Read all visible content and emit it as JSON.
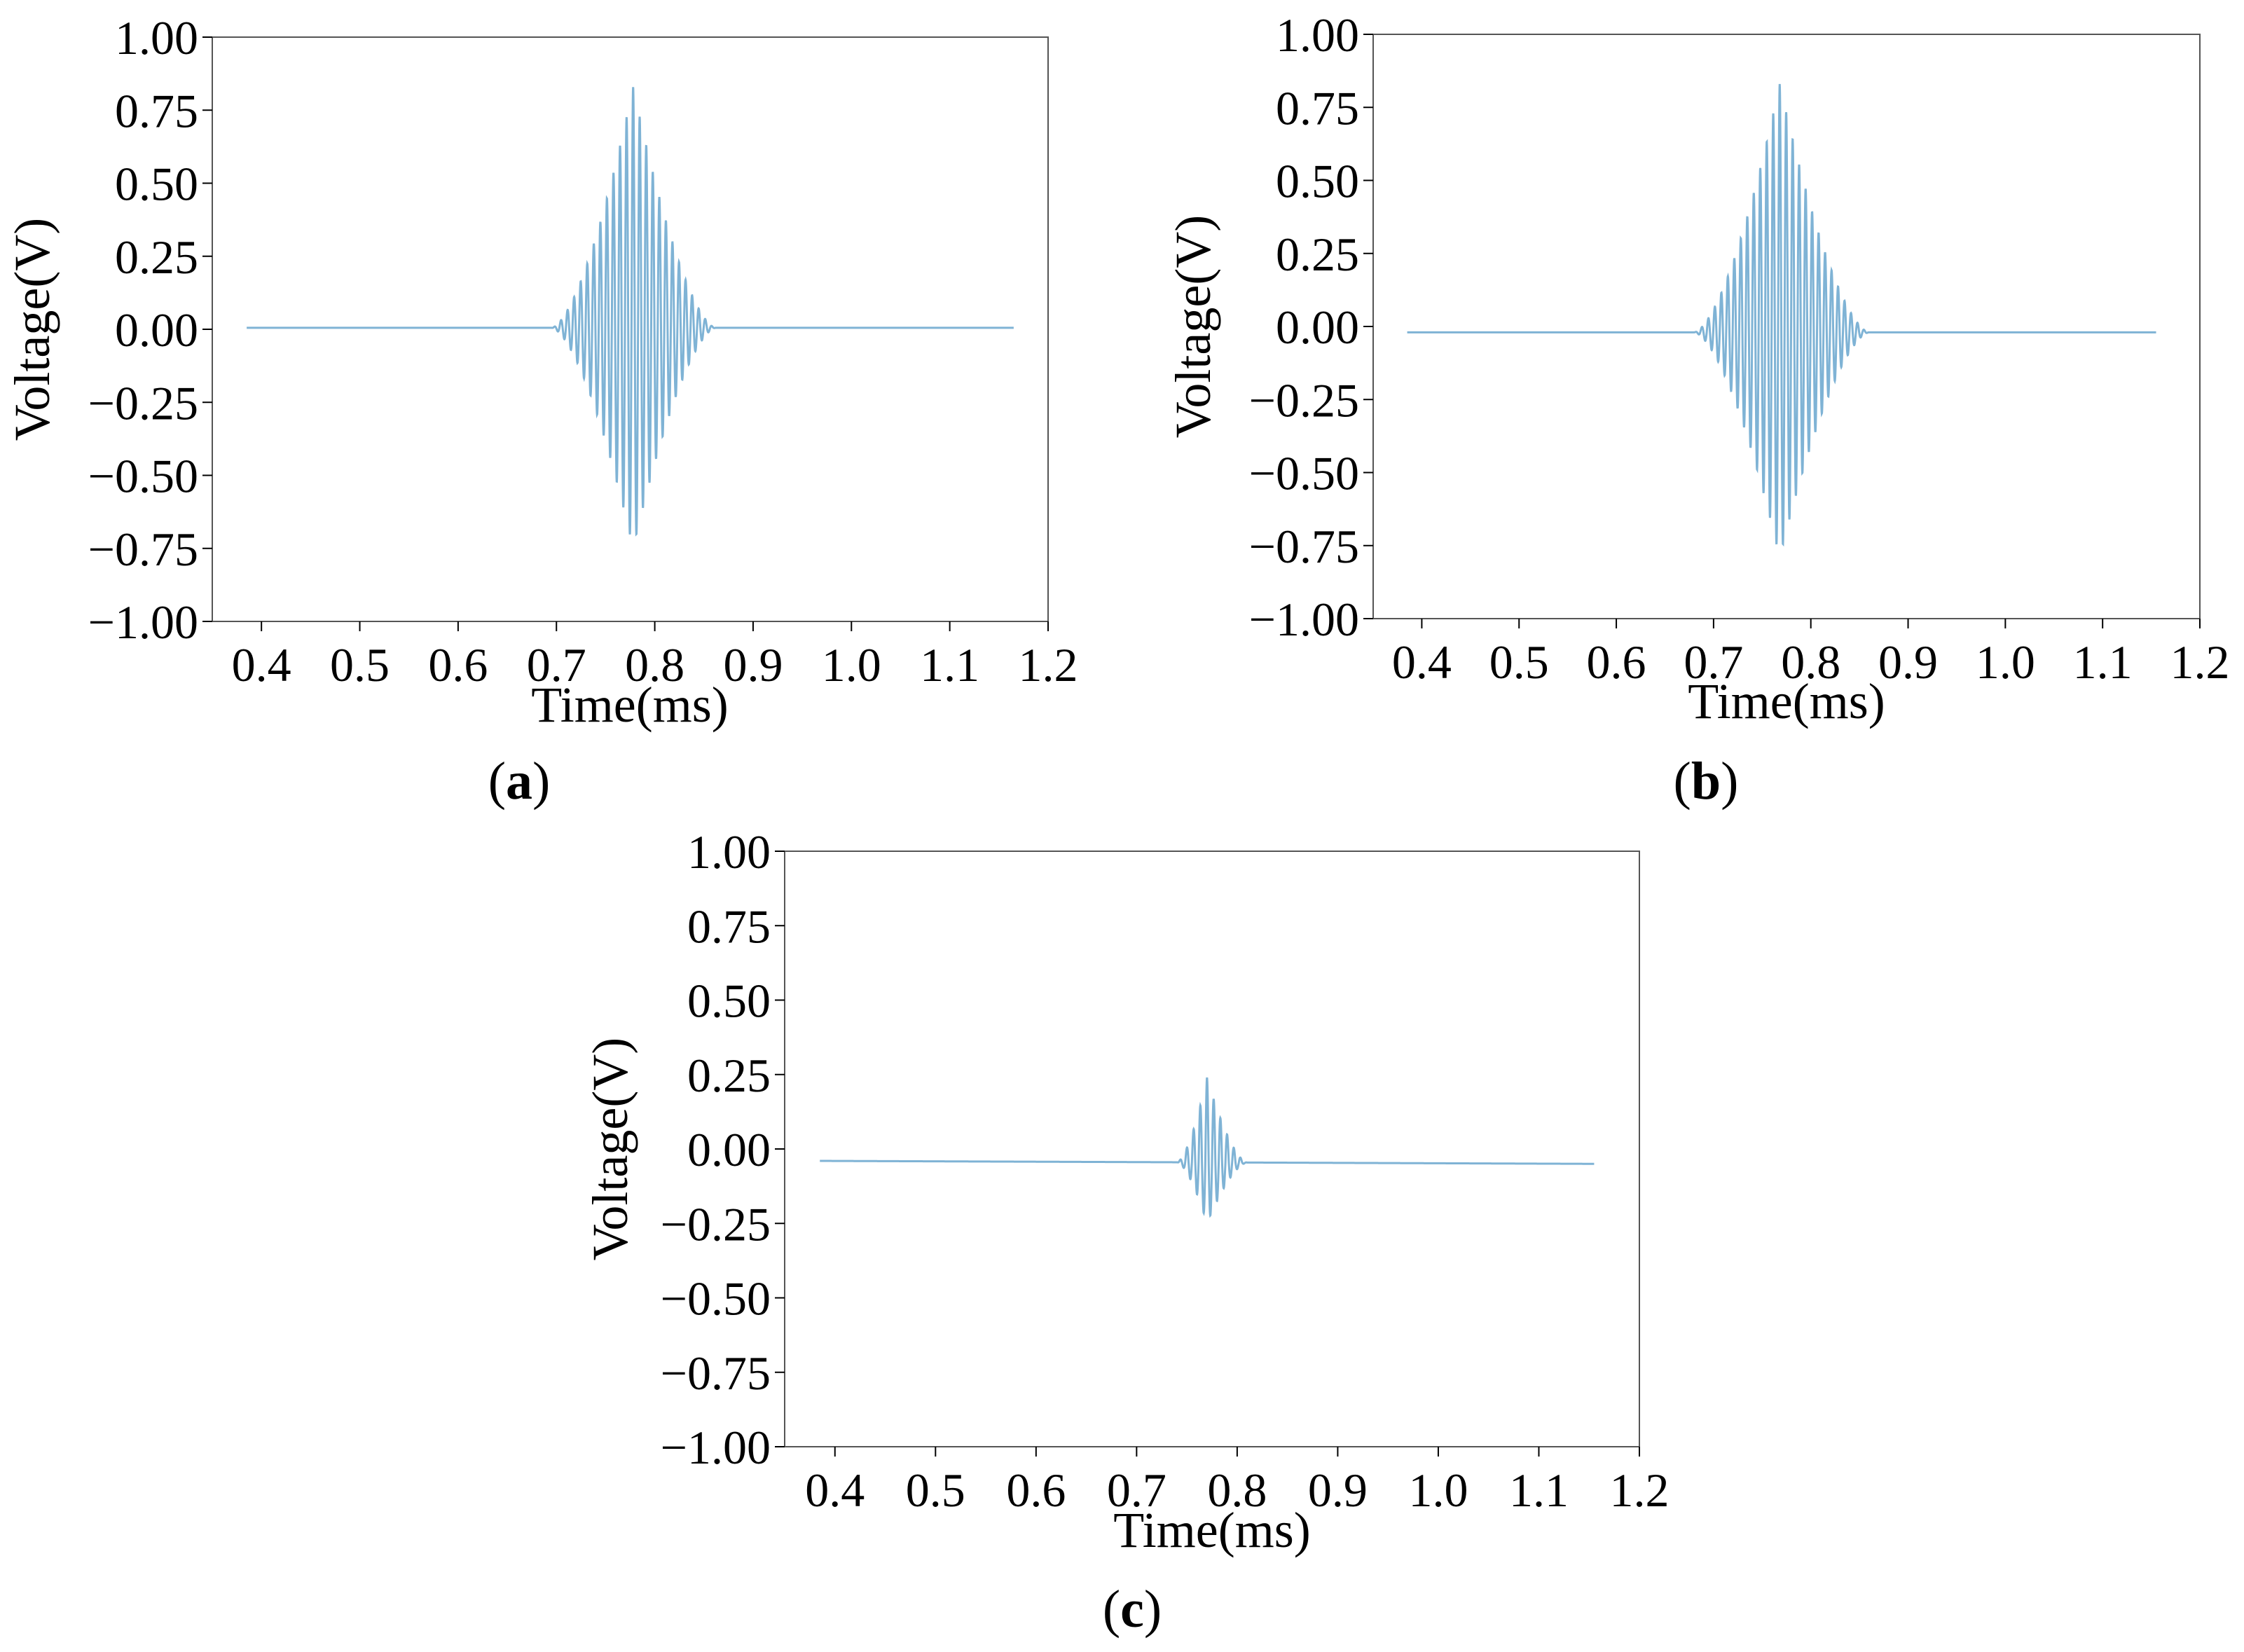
{
  "figure": {
    "line_color": "#7fb3d5",
    "panels": [
      {
        "label": "a",
        "open": "(",
        "close": ")"
      },
      {
        "label": "b",
        "open": "(",
        "close": ")"
      },
      {
        "label": "c",
        "open": "(",
        "close": ")"
      }
    ]
  },
  "chart_data": [
    {
      "type": "line",
      "title": "",
      "xlabel": "Time(ms)",
      "ylabel": "Voltage(V)",
      "xlim": [
        0.35,
        1.2
      ],
      "ylim": [
        -1.0,
        1.0
      ],
      "xticks": [
        0.4,
        0.5,
        0.6,
        0.7,
        0.8,
        0.9,
        1.0,
        1.1,
        1.2
      ],
      "xtick_labels": [
        "0.4",
        "0.5",
        "0.6",
        "0.7",
        "0.8",
        "0.9",
        "1.0",
        "1.1",
        "1.2"
      ],
      "yticks": [
        -1.0,
        -0.75,
        -0.5,
        -0.25,
        0.0,
        0.25,
        0.5,
        0.75,
        1.0
      ],
      "ytick_labels": [
        "−1.00",
        "−0.75",
        "−0.50",
        "−0.25",
        "0.00",
        "0.25",
        "0.50",
        "0.75",
        "1.00"
      ],
      "grid": false,
      "x_range": [
        0.385,
        1.165
      ],
      "baseline_start": 0.005,
      "baseline_end": 0.005,
      "burst_start": 0.695,
      "burst_end": 0.862,
      "burst_peak": 0.778,
      "peak_max": 0.83,
      "peak_min": -0.75,
      "oscillation_period_ms": 0.00667
    },
    {
      "type": "line",
      "title": "",
      "xlabel": "Time(ms)",
      "ylabel": "Voltage(V)",
      "xlim": [
        0.35,
        1.2
      ],
      "ylim": [
        -1.0,
        1.0
      ],
      "xticks": [
        0.4,
        0.5,
        0.6,
        0.7,
        0.8,
        0.9,
        1.0,
        1.1,
        1.2
      ],
      "xtick_labels": [
        "0.4",
        "0.5",
        "0.6",
        "0.7",
        "0.8",
        "0.9",
        "1.0",
        "1.1",
        "1.2"
      ],
      "yticks": [
        -1.0,
        -0.75,
        -0.5,
        -0.25,
        0.0,
        0.25,
        0.5,
        0.75,
        1.0
      ],
      "ytick_labels": [
        "−1.00",
        "−0.75",
        "−0.50",
        "−0.25",
        "0.00",
        "0.25",
        "0.50",
        "0.75",
        "1.00"
      ],
      "grid": false,
      "x_range": [
        0.385,
        1.155
      ],
      "baseline_start": -0.02,
      "baseline_end": -0.02,
      "burst_start": 0.68,
      "burst_end": 0.86,
      "burst_peak": 0.768,
      "peak_max": 0.83,
      "peak_min": -0.79,
      "oscillation_period_ms": 0.00667
    },
    {
      "type": "line",
      "title": "",
      "xlabel": "Time(ms)",
      "ylabel": "Voltage(V)",
      "xlim": [
        0.35,
        1.2
      ],
      "ylim": [
        -1.0,
        1.0
      ],
      "xticks": [
        0.4,
        0.5,
        0.6,
        0.7,
        0.8,
        0.9,
        1.0,
        1.1,
        1.2
      ],
      "xtick_labels": [
        "0.4",
        "0.5",
        "0.6",
        "0.7",
        "0.8",
        "0.9",
        "1.0",
        "1.1",
        "1.2"
      ],
      "yticks": [
        -1.0,
        -0.75,
        -0.5,
        -0.25,
        0.0,
        0.25,
        0.5,
        0.75,
        1.0
      ],
      "ytick_labels": [
        "−1.00",
        "−0.75",
        "−0.50",
        "−0.25",
        "0.00",
        "0.25",
        "0.50",
        "0.75",
        "1.00"
      ],
      "grid": false,
      "x_range": [
        0.385,
        1.155
      ],
      "baseline_start": -0.04,
      "baseline_end": -0.05,
      "burst_start": 0.74,
      "burst_end": 0.81,
      "burst_peak": 0.77,
      "peak_max": 0.24,
      "peak_min": -0.25,
      "oscillation_period_ms": 0.00667
    }
  ]
}
